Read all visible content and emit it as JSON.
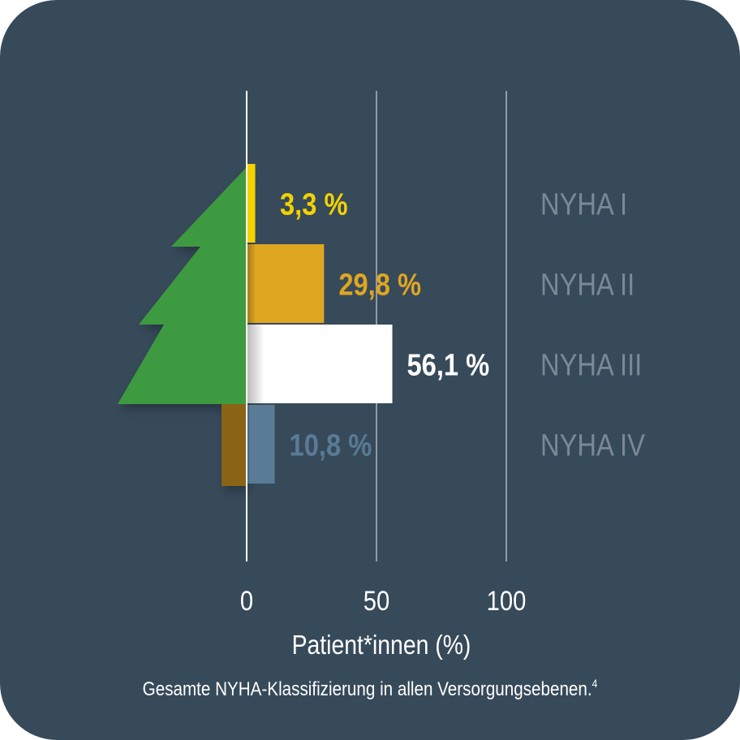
{
  "chart_data": {
    "type": "bar",
    "orientation": "horizontal",
    "categories": [
      "NYHA I",
      "NYHA II",
      "NYHA III",
      "NYHA IV"
    ],
    "values": [
      3.3,
      29.8,
      56.1,
      10.8
    ],
    "value_labels": [
      "3,3 %",
      "29,8 %",
      "56,1 %",
      "10,8 %"
    ],
    "tick_labels": [
      "0",
      "50",
      "100"
    ],
    "xlim": [
      0,
      100
    ],
    "xlabel": "Patient*innen (%)",
    "caption": "Gesamte NYHA-Klassifizierung in allen Versorgungsebenen.",
    "caption_superscript": "4",
    "grid": true,
    "colors": {
      "background": "#374a5a",
      "bars": [
        "#f3d200",
        "#dfa622",
        "#ffffff",
        "#597b95"
      ],
      "labels": [
        "#f3d200",
        "#dfa622",
        "#ffffff",
        "#597b95"
      ],
      "category_text": "#7b8996",
      "gridline": "#8f9ba6",
      "zero_line": "#ffffff",
      "tree": "#3e9a40",
      "trunk": "#8b6418"
    }
  }
}
